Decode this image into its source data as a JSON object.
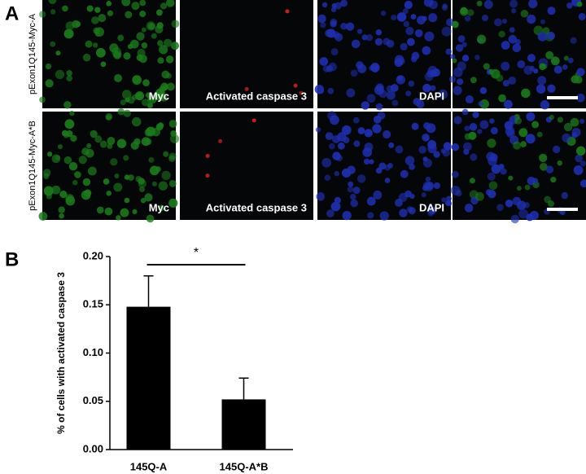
{
  "panels": {
    "a": "A",
    "b": "B"
  },
  "rows": [
    {
      "label": "pExon1Q145-Myc-A",
      "captions": [
        "Myc",
        "Activated caspase 3",
        "DAPI"
      ]
    },
    {
      "label": "pExon1Q145-Myc-A*B",
      "captions": [
        "Myc",
        "Activated caspase 3",
        "DAPI"
      ]
    }
  ],
  "chart_data": {
    "type": "bar",
    "ylabel": "% of cells with activated caspase 3",
    "categories": [
      "145Q-A",
      "145Q-A*B"
    ],
    "values": [
      0.148,
      0.052
    ],
    "errors": [
      0.032,
      0.022
    ],
    "color": "#000000",
    "annotation": "*",
    "ylim": [
      0,
      0.2
    ],
    "yticks": [
      {
        "value": 0,
        "label": "0.00"
      },
      {
        "value": 0.05,
        "label": "0.05"
      },
      {
        "value": 0.1,
        "label": "0.10"
      },
      {
        "value": 0.15,
        "label": "0.15"
      },
      {
        "value": 0.2,
        "label": "0.20"
      }
    ]
  }
}
